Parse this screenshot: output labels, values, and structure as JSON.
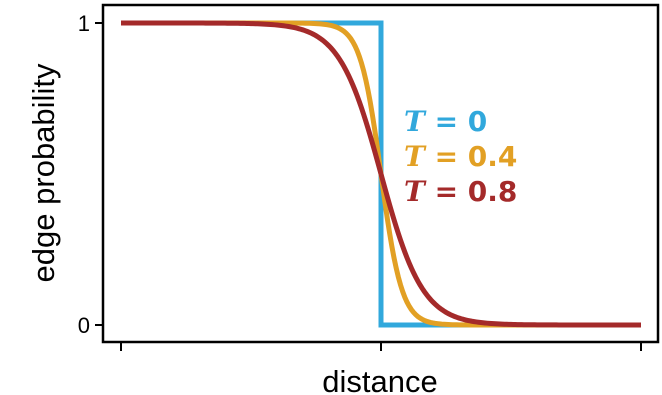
{
  "chart_data": {
    "type": "line",
    "xlabel": "distance",
    "ylabel": "edge probability",
    "yticks": [
      {
        "value": 0,
        "label": "0"
      },
      {
        "value": 1,
        "label": "1"
      }
    ],
    "xlim": [
      -1,
      1
    ],
    "ylim": [
      0,
      1
    ],
    "xticks_unlabeled": [
      -1,
      0,
      1
    ],
    "threshold": 0,
    "grid": false,
    "legend_placement": "center",
    "series": [
      {
        "name": "T = 0",
        "label_var": "T",
        "label_value": "= 0",
        "temperature": 0.0,
        "color": "#31a8dc"
      },
      {
        "name": "T = 0.4",
        "label_var": "T",
        "label_value": "= 0.4",
        "temperature": 0.4,
        "color": "#e2a024"
      },
      {
        "name": "T = 0.8",
        "label_var": "T",
        "label_value": "= 0.8",
        "temperature": 0.8,
        "color": "#a42a2a"
      }
    ]
  }
}
